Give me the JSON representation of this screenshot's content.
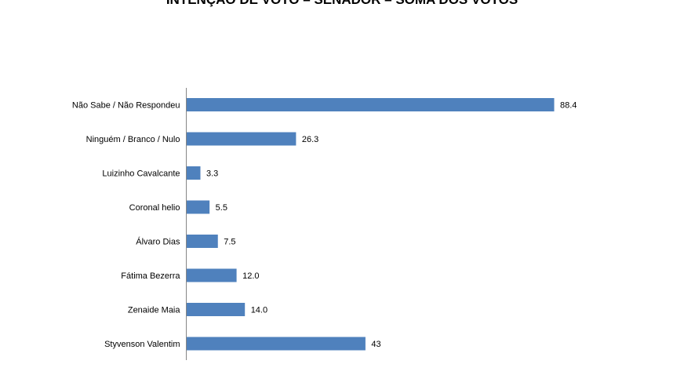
{
  "chart_data": {
    "type": "bar",
    "orientation": "horizontal",
    "title": "INTENÇÃO DE VOTO – SENADOR – SOMA DOS VOTOS",
    "categories": [
      "Não Sabe / Não Respondeu",
      "Ninguém / Branco / Nulo",
      "Luizinho Cavalcante",
      "Coronal helio",
      "Álvaro Dias",
      "Fátima Bezerra",
      "Zenaide Maia",
      "Styvenson Valentim"
    ],
    "values": [
      88.4,
      26.3,
      3.3,
      5.5,
      7.5,
      12.0,
      14.0,
      43
    ],
    "data_labels": [
      "88.4",
      "26.3",
      "3.3",
      "5.5",
      "7.5",
      "12.0",
      "14.0",
      "43"
    ],
    "xlim": [
      0,
      100
    ],
    "grid": false,
    "legend": "none",
    "bar_color": "#4F81BD"
  }
}
